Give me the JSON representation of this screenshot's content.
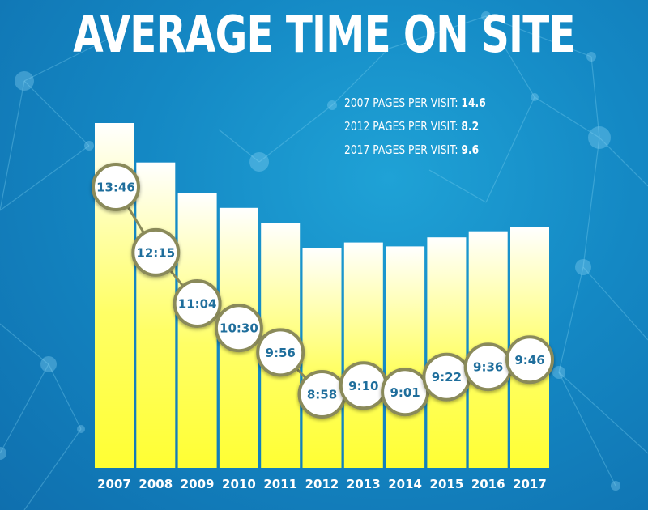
{
  "title": "AVERAGE TIME ON SITE",
  "stats": [
    {
      "label": "2007 PAGES PER VISIT:",
      "value": "14.6"
    },
    {
      "label": "2012 PAGES PER VISIT:",
      "value": "8.2"
    },
    {
      "label": "2017 PAGES PER VISIT:",
      "value": "9.6"
    }
  ],
  "colors": {
    "background": "#1488c4",
    "bar_top": "#ffffff",
    "bar_bottom": "#ffff33",
    "circle_fill": "#ffffff",
    "circle_border": "#8a8a5a",
    "label_text": "#1f6e9c"
  },
  "chart_data": {
    "type": "bar",
    "title": "AVERAGE TIME ON SITE",
    "xlabel": "",
    "ylabel": "",
    "categories": [
      "2007",
      "2008",
      "2009",
      "2010",
      "2011",
      "2012",
      "2013",
      "2014",
      "2015",
      "2016",
      "2017"
    ],
    "labels": [
      "13:46",
      "12:15",
      "11:04",
      "10:30",
      "9:56",
      "8:58",
      "9:10",
      "9:01",
      "9:22",
      "9:36",
      "9:46"
    ],
    "values": [
      826,
      735,
      664,
      630,
      596,
      538,
      550,
      541,
      562,
      576,
      586
    ],
    "value_unit": "seconds",
    "grid": false,
    "legend": "none"
  }
}
